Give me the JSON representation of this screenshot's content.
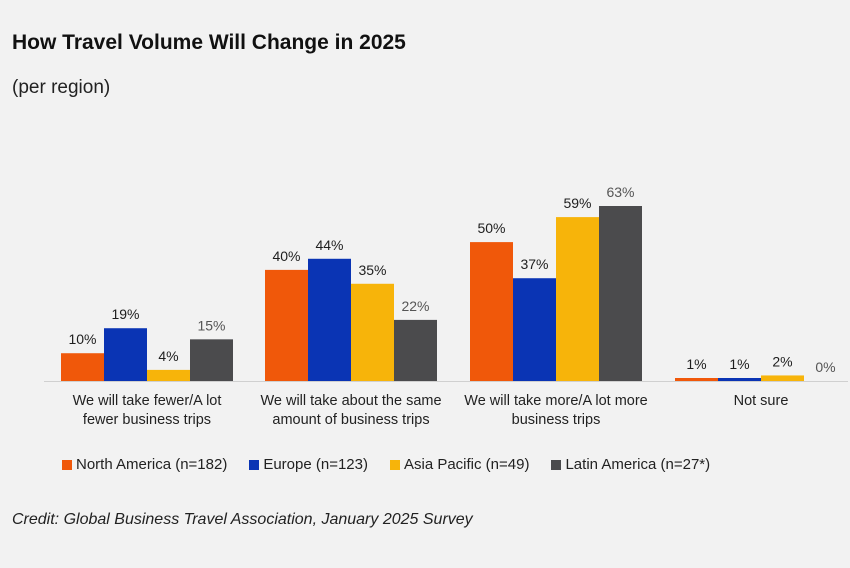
{
  "chart_data": {
    "type": "bar",
    "title": "How Travel Volume Will Change in 2025",
    "subtitle": "(per region)",
    "xlabel": "",
    "ylabel": "",
    "ylim": [
      0,
      63
    ],
    "grid": false,
    "legend_position": "bottom",
    "categories": [
      [
        "We will take fewer/A lot",
        "fewer business trips"
      ],
      [
        "We will take about the same",
        "amount of business trips"
      ],
      [
        "We will take more/A lot more",
        "business trips"
      ],
      [
        "Not sure"
      ]
    ],
    "series": [
      {
        "name": "North America (n=182)",
        "color": "#f0580a",
        "values": [
          10,
          40,
          50,
          1
        ],
        "labels": [
          "10%",
          "40%",
          "50%",
          "1%"
        ]
      },
      {
        "name": "Europe (n=123)",
        "color": "#0a34b4",
        "values": [
          19,
          44,
          37,
          1
        ],
        "labels": [
          "19%",
          "44%",
          "37%",
          "1%"
        ]
      },
      {
        "name": "Asia Pacific (n=49)",
        "color": "#f7b40a",
        "values": [
          4,
          35,
          59,
          2
        ],
        "labels": [
          "4%",
          "35%",
          "59%",
          "2%"
        ]
      },
      {
        "name": "Latin America (n=27*)",
        "color": "#4b4b4d",
        "values": [
          15,
          22,
          63,
          0
        ],
        "labels": [
          "15%",
          "22%",
          "63%",
          "0%"
        ]
      }
    ],
    "label_colors": {
      "light": "#555555",
      "dark": "#1e1e1e"
    }
  },
  "credit": "Credit: Global Business Travel Association, January 2025 Survey"
}
